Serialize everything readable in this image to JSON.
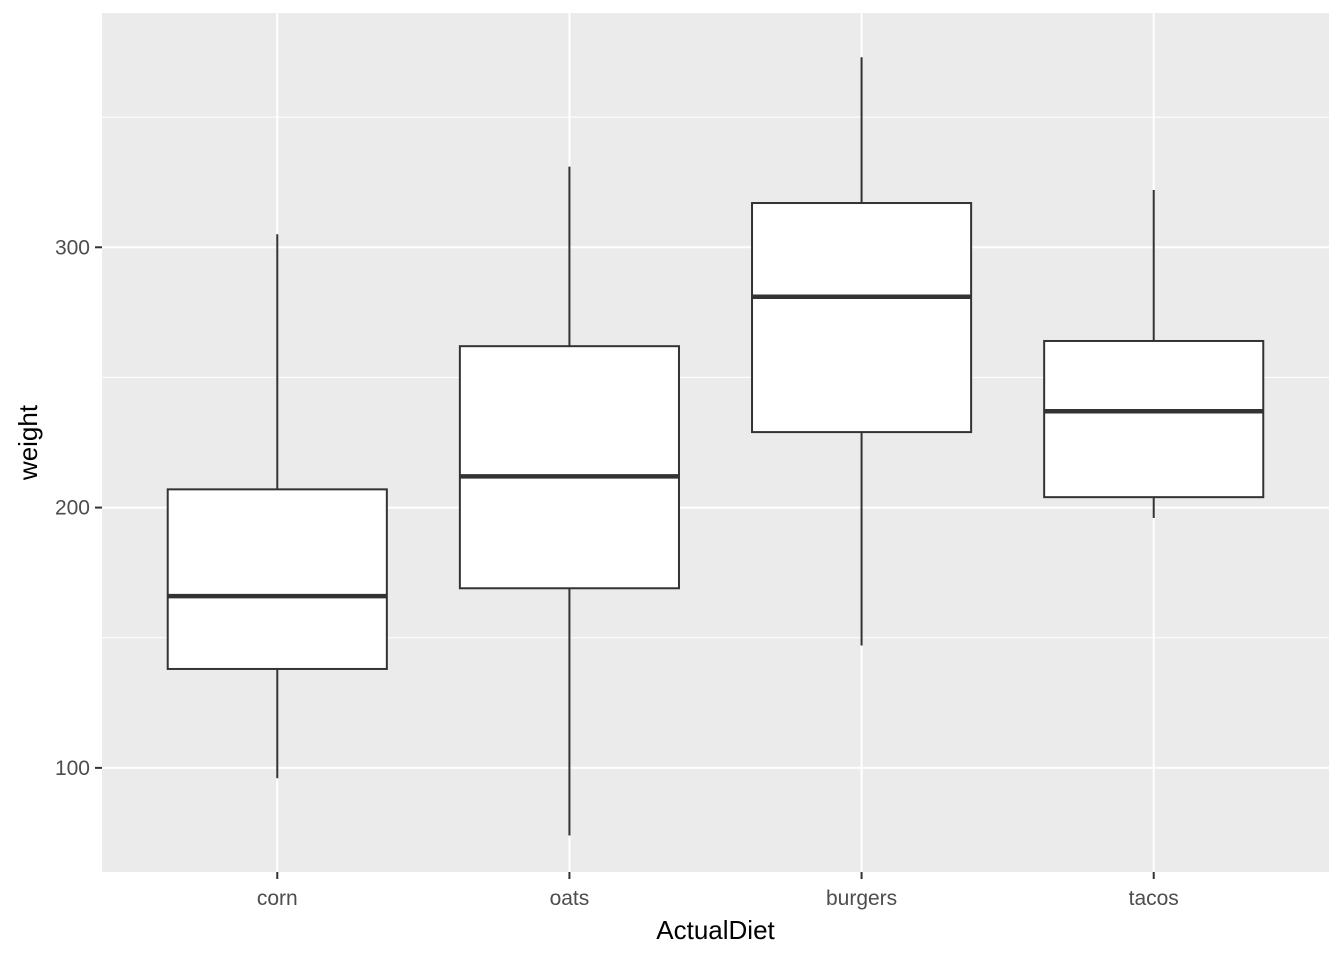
{
  "chart_data": {
    "type": "box",
    "xlabel": "ActualDiet",
    "ylabel": "weight",
    "ylim": [
      60,
      390
    ],
    "y_ticks": [
      100,
      200,
      300
    ],
    "y_minor_ticks": [
      150,
      250,
      350
    ],
    "categories": [
      "corn",
      "oats",
      "burgers",
      "tacos"
    ],
    "boxes": [
      {
        "category": "corn",
        "whisker_low": 96,
        "q1": 138,
        "median": 166,
        "q3": 207,
        "whisker_high": 305
      },
      {
        "category": "oats",
        "whisker_low": 74,
        "q1": 169,
        "median": 212,
        "q3": 262,
        "whisker_high": 331
      },
      {
        "category": "burgers",
        "whisker_low": 147,
        "q1": 229,
        "median": 281,
        "q3": 317,
        "whisker_high": 373
      },
      {
        "category": "tacos",
        "whisker_low": 196,
        "q1": 204,
        "median": 237,
        "q3": 264,
        "whisker_high": 322
      }
    ],
    "grid": true,
    "legend": "none",
    "colors": {
      "panel_background": "#ebebeb",
      "grid_line": "#ffffff",
      "box_fill": "#ffffff",
      "box_line": "#333333",
      "tick_text": "#4d4d4d",
      "axis_title_text": "#000000"
    }
  }
}
